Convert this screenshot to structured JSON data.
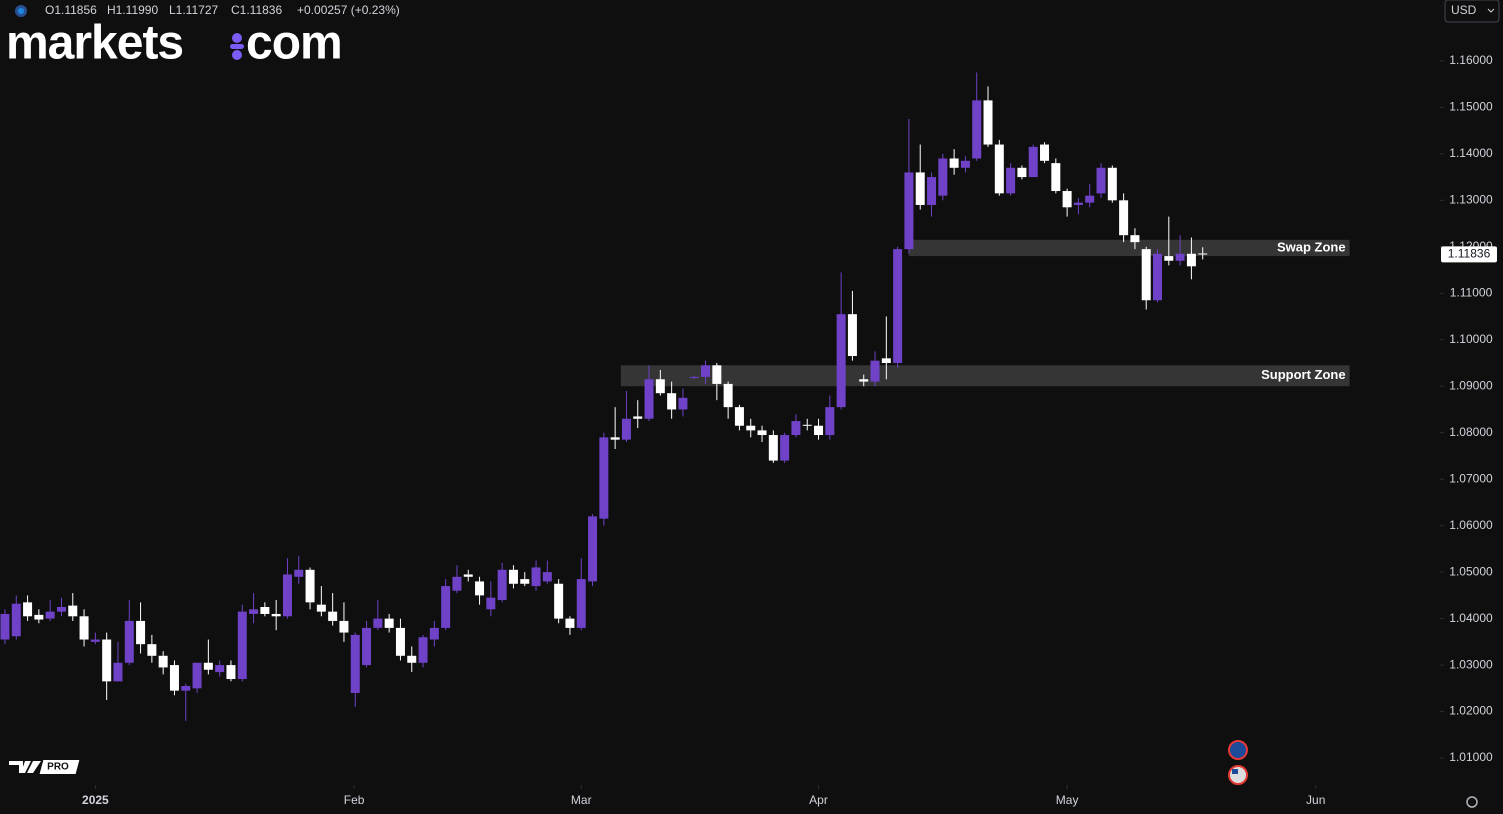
{
  "chart_data": {
    "type": "candlestick",
    "brand": [
      "markets",
      "com"
    ],
    "currency": "USD",
    "badge": "PRO",
    "readout": [
      "O1.11856",
      "H1.11990",
      "L1.11727",
      "C1.11836",
      "+0.00257 (+0.23%)"
    ],
    "up_color": "#6f42c8",
    "down_color": "#ffffff",
    "open": [
      1.0355,
      1.0362,
      1.0435,
      1.0408,
      1.04,
      1.0415,
      1.0428,
      1.0405,
      1.035,
      1.0355,
      1.0265,
      1.0305,
      1.0395,
      1.0345,
      1.032,
      1.03,
      1.0245,
      1.025,
      1.0305,
      1.0285,
      1.03,
      1.027,
      1.041,
      1.0425,
      1.041,
      1.0405,
      1.049,
      1.0505,
      1.043,
      1.0415,
      1.0395,
      1.024,
      1.03,
      1.038,
      1.04,
      1.038,
      1.032,
      1.0305,
      1.0355,
      1.038,
      1.046,
      1.0495,
      1.048,
      1.042,
      1.044,
      1.0505,
      1.0485,
      1.047,
      1.048,
      1.0475,
      1.04,
      1.038,
      1.048,
      1.0615,
      1.079,
      1.0785,
      1.0835,
      1.083,
      1.0915,
      1.0885,
      1.085,
      1.0918,
      1.092,
      1.0945,
      1.0905,
      1.0855,
      1.0815,
      1.0805,
      1.0795,
      1.074,
      1.0795,
      1.0817,
      1.0815,
      1.0795,
      1.0855,
      1.1055,
      1.0915,
      1.091,
      1.096,
      1.095,
      1.1195,
      1.136,
      1.129,
      1.131,
      1.139,
      1.137,
      1.139,
      1.1515,
      1.142,
      1.1315,
      1.137,
      1.135,
      1.142,
      1.138,
      1.132,
      1.129,
      1.1295,
      1.1315,
      1.137,
      1.13,
      1.1225,
      1.1195,
      1.1085,
      1.118,
      1.117,
      1.1185,
      1.11856
    ],
    "high": [
      1.042,
      1.045,
      1.045,
      1.042,
      1.044,
      1.0445,
      1.0455,
      1.042,
      1.037,
      1.037,
      1.035,
      1.044,
      1.0435,
      1.0365,
      1.033,
      1.031,
      1.026,
      1.0305,
      1.0355,
      1.031,
      1.031,
      1.043,
      1.0455,
      1.0435,
      1.044,
      1.053,
      1.0535,
      1.051,
      1.047,
      1.0455,
      1.0435,
      1.037,
      1.0395,
      1.044,
      1.041,
      1.04,
      1.034,
      1.0365,
      1.0395,
      1.0485,
      1.0515,
      1.0505,
      1.049,
      1.048,
      1.052,
      1.0515,
      1.05,
      1.0525,
      1.0525,
      1.0485,
      1.0405,
      1.053,
      1.0625,
      1.08,
      1.0855,
      1.089,
      1.087,
      1.0945,
      1.0935,
      1.091,
      1.0895,
      1.0922,
      1.0955,
      1.095,
      1.091,
      1.086,
      1.083,
      1.0815,
      1.0805,
      1.08,
      1.084,
      1.083,
      1.083,
      1.088,
      1.1145,
      1.1105,
      1.0925,
      1.0975,
      1.105,
      1.12,
      1.1475,
      1.142,
      1.136,
      1.14,
      1.141,
      1.1395,
      1.1575,
      1.1545,
      1.143,
      1.138,
      1.1375,
      1.142,
      1.1425,
      1.139,
      1.1325,
      1.1305,
      1.1335,
      1.138,
      1.1375,
      1.1315,
      1.124,
      1.12,
      1.1195,
      1.1265,
      1.1225,
      1.122,
      1.1199
    ],
    "low": [
      1.0345,
      1.0355,
      1.0395,
      1.039,
      1.0395,
      1.0405,
      1.0395,
      1.034,
      1.0345,
      1.0225,
      1.0265,
      1.03,
      1.0325,
      1.0305,
      1.028,
      1.0235,
      1.018,
      1.024,
      1.028,
      1.0275,
      1.0265,
      1.0265,
      1.039,
      1.0405,
      1.0375,
      1.04,
      1.0475,
      1.042,
      1.0405,
      1.0385,
      1.035,
      1.021,
      1.0295,
      1.0375,
      1.037,
      1.031,
      1.0285,
      1.0295,
      1.034,
      1.0375,
      1.0455,
      1.048,
      1.043,
      1.0405,
      1.0435,
      1.0465,
      1.047,
      1.046,
      1.0475,
      1.039,
      1.0365,
      1.0375,
      1.047,
      1.06,
      1.0765,
      1.078,
      1.081,
      1.0825,
      1.088,
      1.083,
      1.0835,
      1.0915,
      1.0905,
      1.087,
      1.083,
      1.0805,
      1.079,
      1.078,
      1.0735,
      1.0735,
      1.079,
      1.0805,
      1.0785,
      1.0785,
      1.085,
      1.0955,
      1.09,
      1.09,
      1.0915,
      1.094,
      1.1185,
      1.128,
      1.1265,
      1.13,
      1.1355,
      1.136,
      1.1385,
      1.1415,
      1.131,
      1.131,
      1.1345,
      1.135,
      1.138,
      1.1315,
      1.1265,
      1.127,
      1.1285,
      1.1305,
      1.1295,
      1.121,
      1.1195,
      1.1065,
      1.108,
      1.116,
      1.116,
      1.113,
      1.11727
    ],
    "close": [
      1.041,
      1.0432,
      1.0405,
      1.0398,
      1.0415,
      1.0425,
      1.0405,
      1.0355,
      1.0355,
      1.0265,
      1.0305,
      1.0395,
      1.0345,
      1.032,
      1.0295,
      1.0245,
      1.0255,
      1.0305,
      1.029,
      1.03,
      1.027,
      1.0415,
      1.042,
      1.041,
      1.0405,
      1.0495,
      1.0505,
      1.0435,
      1.0415,
      1.0395,
      1.037,
      1.0365,
      1.038,
      1.04,
      1.038,
      1.032,
      1.0305,
      1.036,
      1.038,
      1.047,
      1.049,
      1.049,
      1.045,
      1.0445,
      1.0505,
      1.0475,
      1.0475,
      1.051,
      1.05,
      1.04,
      1.038,
      1.0485,
      1.062,
      1.079,
      1.0785,
      1.083,
      1.083,
      1.0915,
      1.0885,
      1.085,
      1.0875,
      1.092,
      1.0945,
      1.0905,
      1.0855,
      1.0815,
      1.0805,
      1.0795,
      1.074,
      1.0795,
      1.0825,
      1.0815,
      1.0795,
      1.0855,
      1.1055,
      1.0965,
      1.091,
      1.0955,
      1.095,
      1.1195,
      1.136,
      1.129,
      1.135,
      1.139,
      1.137,
      1.1385,
      1.1515,
      1.142,
      1.1315,
      1.137,
      1.135,
      1.1415,
      1.1385,
      1.132,
      1.1285,
      1.1295,
      1.131,
      1.137,
      1.13,
      1.1225,
      1.121,
      1.1085,
      1.1185,
      1.117,
      1.1185,
      1.1158,
      1.11836
    ],
    "zones": [
      {
        "label": "Swap Zone",
        "ylim": [
          1.118,
          1.1215
        ],
        "xlim": [
          80,
          119
        ]
      },
      {
        "label": "Support Zone",
        "ylim": [
          1.09,
          1.0945
        ],
        "xlim": [
          54.5,
          119
        ]
      }
    ],
    "last_price": {
      "value": 1.11836,
      "label": "1.11836"
    },
    "xlim": [
      -0.44,
      127
    ],
    "ylim": [
      1.0042,
      1.1731
    ],
    "xticks": [
      {
        "value": 8,
        "label": "2025"
      },
      {
        "value": 30.9,
        "label": "Feb"
      },
      {
        "value": 51,
        "label": "Mar"
      },
      {
        "value": 72,
        "label": "Apr"
      },
      {
        "value": 94,
        "label": "May"
      },
      {
        "value": 116,
        "label": "Jun"
      }
    ],
    "yticks": [
      {
        "value": 1.16,
        "label": "1.16000"
      },
      {
        "value": 1.15,
        "label": "1.15000"
      },
      {
        "value": 1.14,
        "label": "1.14000"
      },
      {
        "value": 1.13,
        "label": "1.13000"
      },
      {
        "value": 1.12,
        "label": "1.12000"
      },
      {
        "value": 1.11,
        "label": "1.11000"
      },
      {
        "value": 1.1,
        "label": "1.10000"
      },
      {
        "value": 1.09,
        "label": "1.09000"
      },
      {
        "value": 1.08,
        "label": "1.08000"
      },
      {
        "value": 1.07,
        "label": "1.07000"
      },
      {
        "value": 1.06,
        "label": "1.06000"
      },
      {
        "value": 1.05,
        "label": "1.05000"
      },
      {
        "value": 1.04,
        "label": "1.04000"
      },
      {
        "value": 1.03,
        "label": "1.03000"
      },
      {
        "value": 1.02,
        "label": "1.02000"
      },
      {
        "value": 1.01,
        "label": "1.01000"
      }
    ]
  }
}
